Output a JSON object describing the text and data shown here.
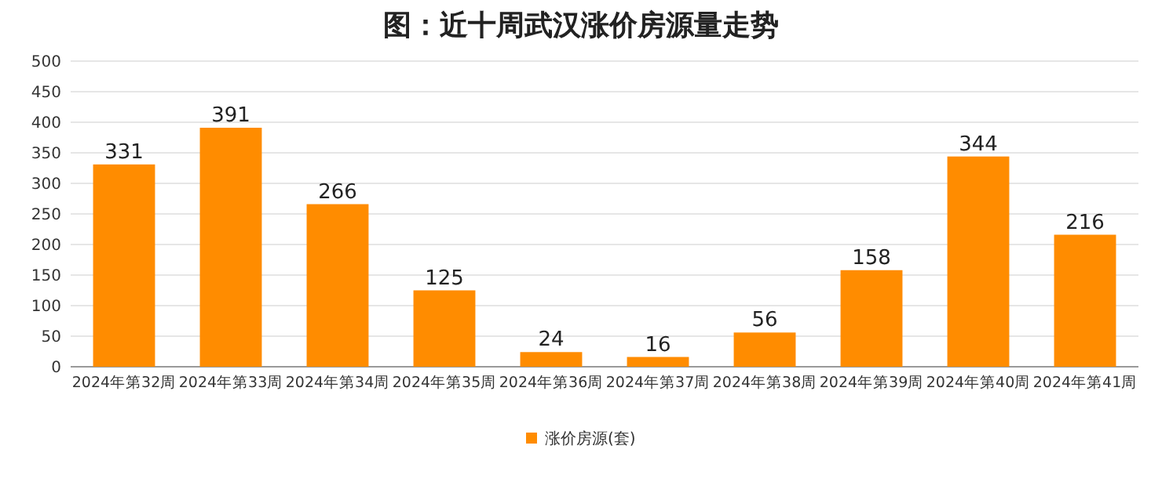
{
  "chart_data": {
    "type": "bar",
    "title": "图：近十周武汉涨价房源量走势",
    "categories": [
      "2024年第32周",
      "2024年第33周",
      "2024年第34周",
      "2024年第35周",
      "2024年第36周",
      "2024年第37周",
      "2024年第38周",
      "2024年第39周",
      "2024年第40周",
      "2024年第41周"
    ],
    "series": [
      {
        "name": "涨价房源(套)",
        "color": "#ff8c00",
        "values": [
          331,
          391,
          266,
          125,
          24,
          16,
          56,
          158,
          344,
          216
        ]
      }
    ],
    "ylim": [
      0,
      500
    ],
    "yticks": [
      0,
      50,
      100,
      150,
      200,
      250,
      300,
      350,
      400,
      450,
      500
    ],
    "grid": "y",
    "legend": "bottom",
    "data_labels": true
  }
}
